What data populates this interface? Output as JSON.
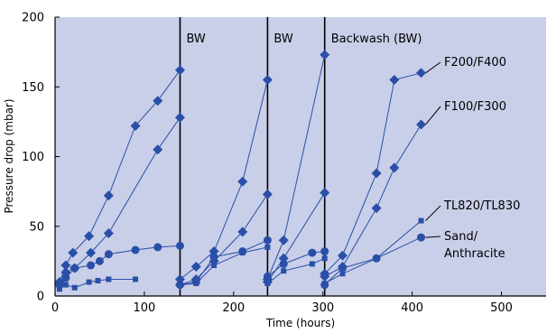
{
  "chart_data": {
    "type": "line",
    "title": "",
    "xlabel": "Time (hours)",
    "ylabel": "Pressure drop (mbar)",
    "xlim": [
      0,
      550
    ],
    "ylim": [
      0,
      200
    ],
    "xticks": [
      0,
      100,
      200,
      300,
      400,
      500
    ],
    "yticks": [
      0,
      50,
      100,
      150,
      200
    ],
    "grid": false,
    "colors": {
      "plot_bg": "#c9cfe8",
      "series": "#2a4fa8",
      "vline": "#000000",
      "text": "#000000"
    },
    "backwash_lines": [
      {
        "x": 140,
        "label": "BW"
      },
      {
        "x": 238,
        "label": "BW"
      },
      {
        "x": 302,
        "label": "Backwash (BW)"
      }
    ],
    "series": [
      {
        "name": "F200/F400",
        "marker": "diamond",
        "segments": [
          [
            [
              5,
              10
            ],
            [
              12,
              22
            ],
            [
              20,
              31
            ],
            [
              38,
              43
            ],
            [
              60,
              72
            ],
            [
              90,
              122
            ],
            [
              115,
              140
            ],
            [
              140,
              162
            ]
          ],
          [
            [
              140,
              12
            ],
            [
              158,
              21
            ],
            [
              178,
              32
            ],
            [
              210,
              82
            ],
            [
              238,
              155
            ]
          ],
          [
            [
              238,
              12
            ],
            [
              256,
              40
            ],
            [
              302,
              173
            ]
          ],
          [
            [
              302,
              16
            ],
            [
              322,
              29
            ],
            [
              360,
              88
            ],
            [
              380,
              155
            ],
            [
              410,
              160
            ]
          ]
        ]
      },
      {
        "name": "F100/F300",
        "marker": "diamond",
        "segments": [
          [
            [
              5,
              8
            ],
            [
              12,
              17
            ],
            [
              22,
              20
            ],
            [
              40,
              31
            ],
            [
              60,
              45
            ],
            [
              115,
              105
            ],
            [
              140,
              128
            ]
          ],
          [
            [
              140,
              8
            ],
            [
              158,
              12
            ],
            [
              178,
              25
            ],
            [
              210,
              46
            ],
            [
              238,
              73
            ]
          ],
          [
            [
              238,
              10
            ],
            [
              256,
              27
            ],
            [
              302,
              74
            ]
          ],
          [
            [
              302,
              14
            ],
            [
              322,
              21
            ],
            [
              360,
              63
            ],
            [
              380,
              92
            ],
            [
              410,
              123
            ]
          ]
        ]
      },
      {
        "name": "TL820/TL830",
        "marker": "square",
        "segments": [
          [
            [
              5,
              5
            ],
            [
              12,
              8
            ],
            [
              22,
              6
            ],
            [
              38,
              10
            ],
            [
              48,
              11
            ],
            [
              60,
              12
            ],
            [
              90,
              12
            ]
          ],
          [
            [
              140,
              8
            ],
            [
              158,
              9
            ],
            [
              178,
              22
            ],
            [
              210,
              31
            ],
            [
              238,
              35
            ]
          ],
          [
            [
              238,
              9
            ],
            [
              256,
              18
            ],
            [
              288,
              23
            ],
            [
              302,
              27
            ]
          ],
          [
            [
              302,
              9
            ],
            [
              322,
              16
            ],
            [
              360,
              27
            ],
            [
              410,
              54
            ]
          ]
        ]
      },
      {
        "name": "Sand/\nAnthracite",
        "marker": "circle",
        "segments": [
          [
            [
              5,
              8
            ],
            [
              12,
              13
            ],
            [
              22,
              20
            ],
            [
              40,
              22
            ],
            [
              50,
              25
            ],
            [
              60,
              30
            ],
            [
              90,
              33
            ],
            [
              115,
              35
            ],
            [
              140,
              36
            ]
          ],
          [
            [
              140,
              8
            ],
            [
              158,
              10
            ],
            [
              178,
              28
            ],
            [
              210,
              32
            ],
            [
              238,
              40
            ]
          ],
          [
            [
              238,
              14
            ],
            [
              256,
              23
            ],
            [
              288,
              31
            ],
            [
              302,
              32
            ]
          ],
          [
            [
              302,
              8
            ],
            [
              322,
              20
            ],
            [
              360,
              27
            ],
            [
              410,
              42
            ]
          ]
        ]
      }
    ],
    "series_label_anchor": [
      [
        410,
        160
      ],
      [
        410,
        123
      ],
      [
        410,
        54
      ],
      [
        410,
        42
      ]
    ],
    "series_label_pos": [
      [
        492,
        73
      ],
      [
        492,
        122
      ],
      [
        492,
        232
      ],
      [
        492,
        266
      ]
    ]
  }
}
